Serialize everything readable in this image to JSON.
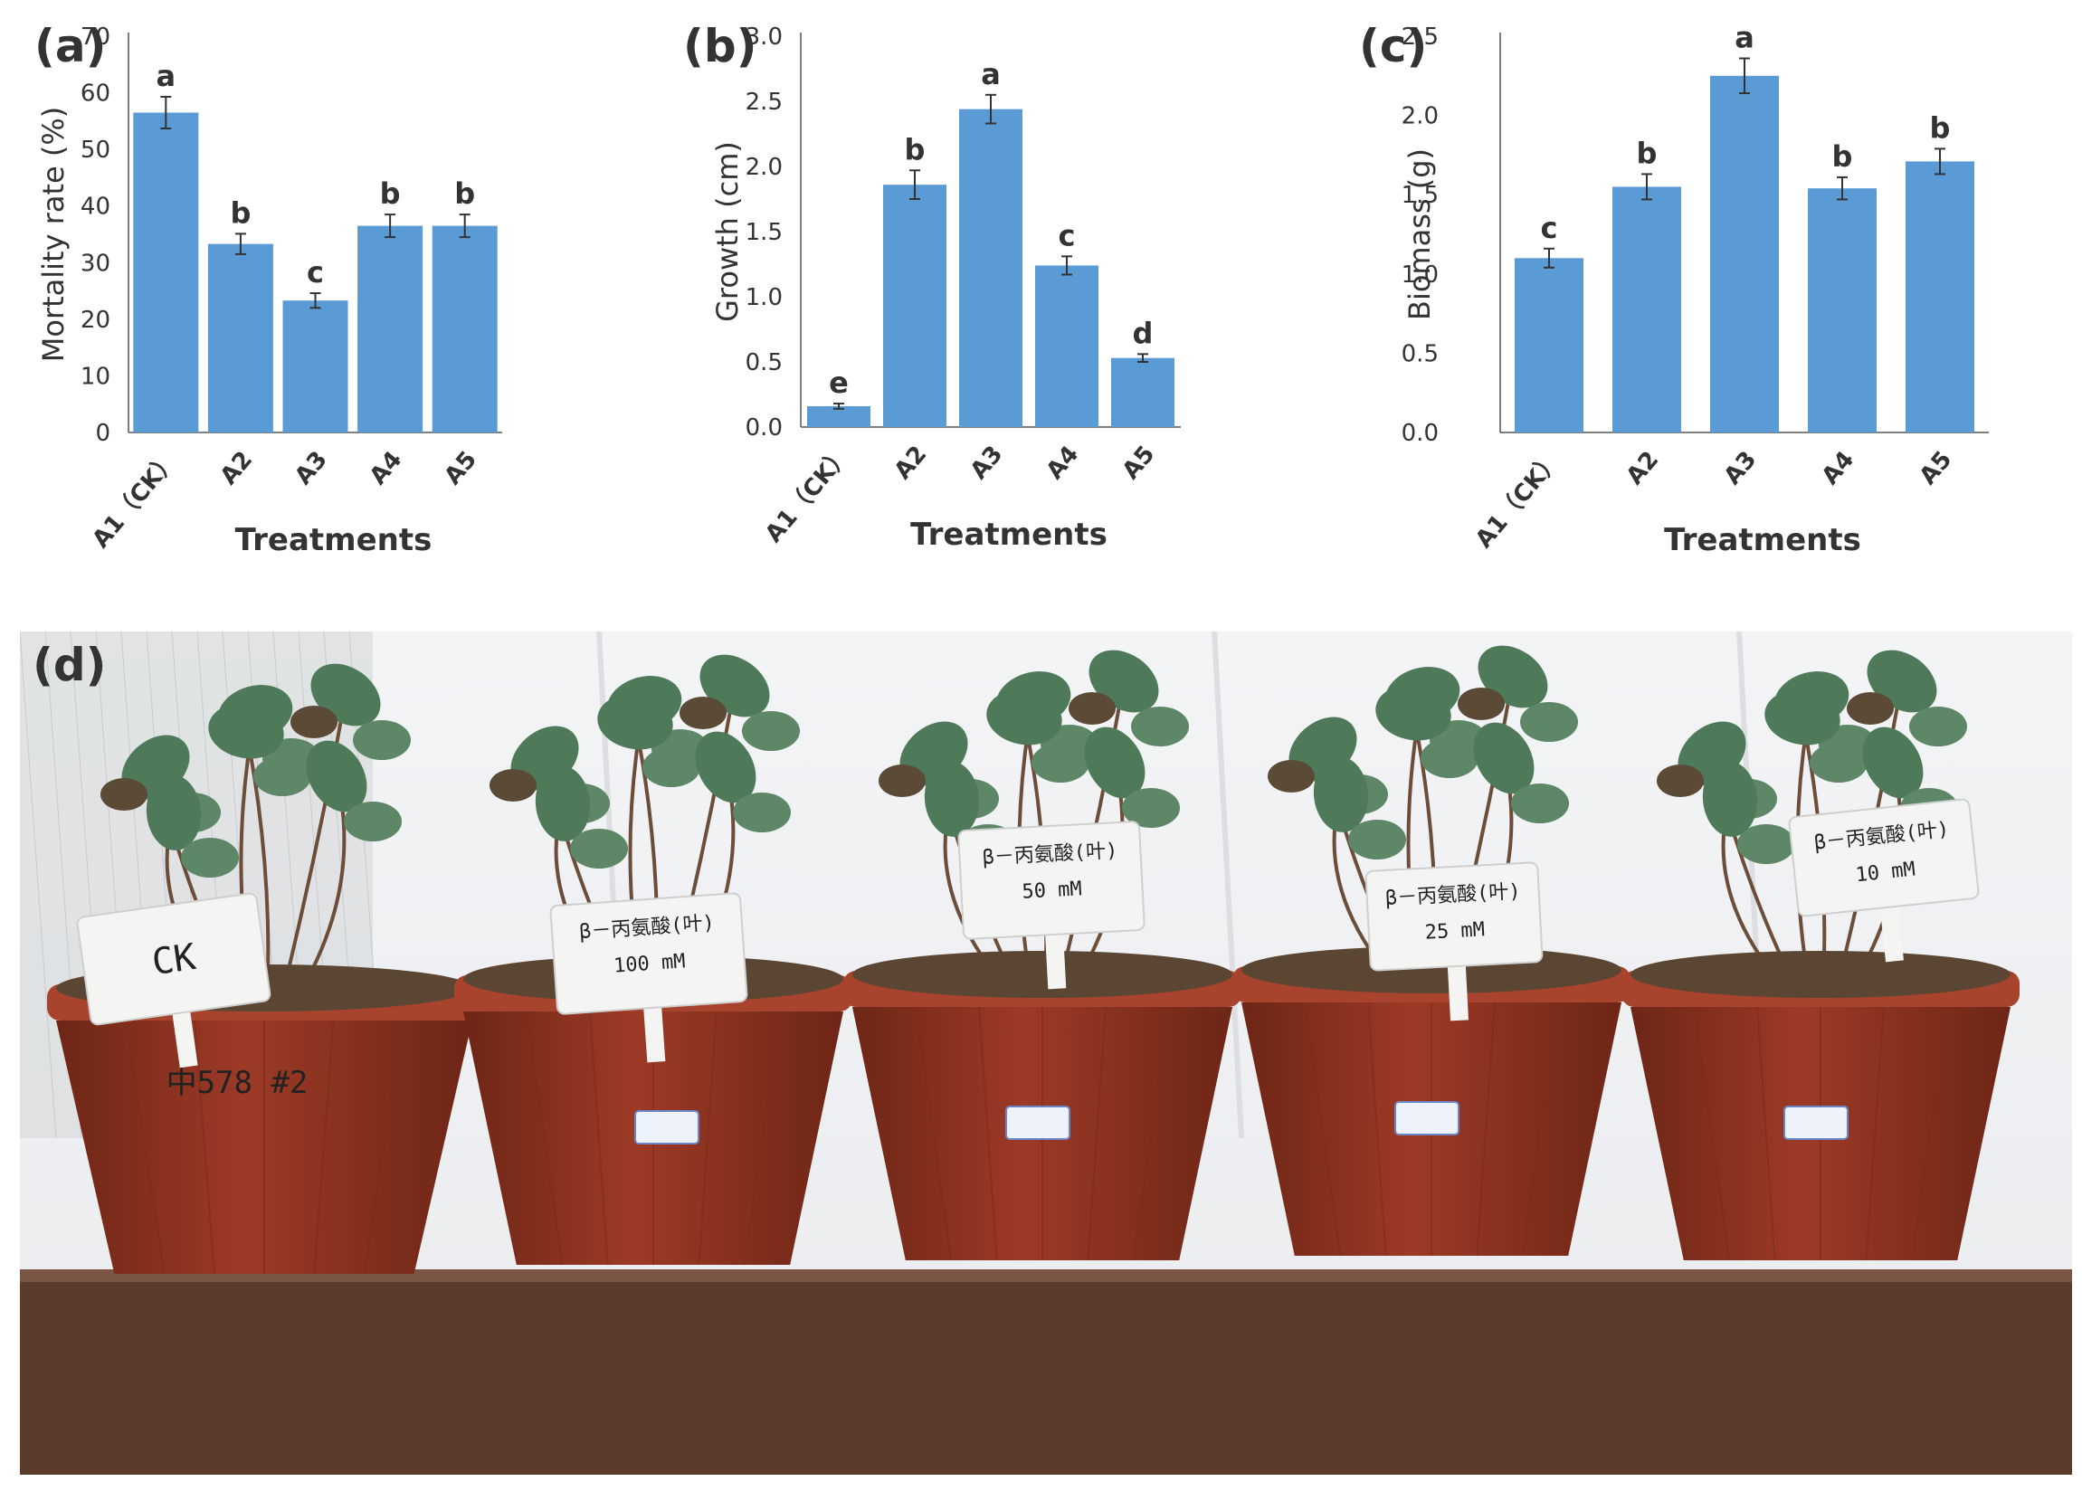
{
  "chart_data": [
    {
      "type": "bar",
      "panel_label": "(a)",
      "ylabel": "Mortality rate (%)",
      "xlabel": "Treatments",
      "categories": [
        "A1（CK）",
        "A2",
        "A3",
        "A4",
        "A5"
      ],
      "values": [
        56.5,
        33.3,
        23.3,
        36.5,
        36.5
      ],
      "errors": [
        2.8,
        1.8,
        1.3,
        2.0,
        2.0
      ],
      "significance": [
        "a",
        "b",
        "c",
        "b",
        "b"
      ],
      "ylim": [
        0,
        70
      ],
      "yticks": [
        "0",
        "10",
        "20",
        "30",
        "40",
        "50",
        "60",
        "70"
      ],
      "bar_color": "#5b9bd5",
      "grid": false
    },
    {
      "type": "bar",
      "panel_label": "(b)",
      "ylabel": "Growth (cm)",
      "xlabel": "Treatments",
      "categories": [
        "A1（CK）",
        "A2",
        "A3",
        "A4",
        "A5"
      ],
      "values": [
        0.16,
        1.86,
        2.44,
        1.24,
        0.53
      ],
      "errors": [
        0.02,
        0.11,
        0.11,
        0.07,
        0.03
      ],
      "significance": [
        "e",
        "b",
        "a",
        "c",
        "d"
      ],
      "ylim": [
        0,
        3.0
      ],
      "yticks": [
        "0.0",
        "0.5",
        "1.0",
        "1.5",
        "2.0",
        "2.5",
        "3.0"
      ],
      "bar_color": "#5b9bd5",
      "grid": false
    },
    {
      "type": "bar",
      "panel_label": "(c)",
      "ylabel": "Biomass (g)",
      "xlabel": "Treatments",
      "categories": [
        "A1（CK）",
        "A2",
        "A3",
        "A4",
        "A5"
      ],
      "values": [
        1.1,
        1.55,
        2.25,
        1.54,
        1.71
      ],
      "errors": [
        0.06,
        0.08,
        0.11,
        0.07,
        0.08
      ],
      "significance": [
        "c",
        "b",
        "a",
        "b",
        "b"
      ],
      "ylim": [
        0,
        2.5
      ],
      "yticks": [
        "0.0",
        "0.5",
        "1.0",
        "1.5",
        "2.0",
        "2.5"
      ],
      "bar_color": "#5b9bd5",
      "grid": false
    }
  ],
  "photo": {
    "panel_label": "(d)",
    "pot_labels": [
      {
        "lines": [
          "CK"
        ]
      },
      {
        "lines": [
          "β－丙氨酸(叶)",
          "100 mM"
        ]
      },
      {
        "lines": [
          "β－丙氨酸(叶)",
          "50 mM"
        ]
      },
      {
        "lines": [
          "β－丙氨酸(叶)",
          "25 mM"
        ]
      },
      {
        "lines": [
          "β－丙氨酸(叶)",
          "10 mM"
        ]
      }
    ],
    "pot_writing": "中578 #2",
    "colors": {
      "backdrop": "#e9ebee",
      "shelf": "#5a3b2c",
      "pot": "#9c3a26",
      "pot_dark": "#6e2616",
      "leaf": "#4f7a5a",
      "label": "#f4f4f2"
    }
  }
}
